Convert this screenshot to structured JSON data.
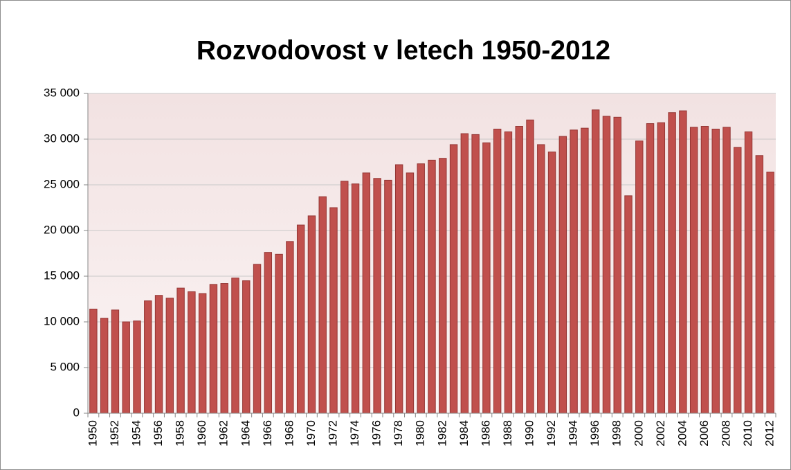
{
  "chart_data": {
    "type": "bar",
    "title": "Rozvodovost v letech 1950-2012",
    "categories": [
      "1950",
      null,
      "1952",
      null,
      "1954",
      null,
      "1956",
      null,
      "1958",
      null,
      "1960",
      null,
      "1962",
      null,
      "1964",
      null,
      "1966",
      null,
      "1968",
      null,
      "1970",
      null,
      "1972",
      null,
      "1974",
      null,
      "1976",
      null,
      "1978",
      null,
      "1980",
      null,
      "1982",
      null,
      "1984",
      null,
      "1986",
      null,
      "1988",
      null,
      "1990",
      null,
      "1992",
      null,
      "1994",
      null,
      "1996",
      null,
      "1998",
      null,
      "2000",
      null,
      "2002",
      null,
      "2004",
      null,
      "2006",
      null,
      "2008",
      null,
      "2010",
      null,
      "2012"
    ],
    "values": [
      11400,
      10400,
      11300,
      10000,
      10100,
      12300,
      12900,
      12600,
      13700,
      13300,
      13100,
      14100,
      14200,
      14800,
      14500,
      16300,
      17600,
      17400,
      18800,
      20600,
      21600,
      23700,
      22500,
      25400,
      25100,
      26300,
      25700,
      25500,
      27200,
      26300,
      27300,
      27700,
      27900,
      29400,
      30600,
      30500,
      29600,
      31100,
      30800,
      31400,
      32100,
      29400,
      28600,
      30300,
      31000,
      31200,
      33200,
      32500,
      32400,
      23800,
      29800,
      31700,
      31800,
      32900,
      33100,
      31300,
      31400,
      31100,
      31300,
      29100,
      30800,
      28200,
      26400
    ],
    "color": "#c0504d",
    "ylim": [
      0,
      35000
    ],
    "yticks": [
      0,
      {
        "value": 5000,
        "label": "5 000"
      },
      {
        "value": 10000,
        "label": "10 000"
      },
      {
        "value": 15000,
        "label": "15 000"
      },
      {
        "value": 20000,
        "label": "20 000"
      },
      {
        "value": 25000,
        "label": "25 000"
      },
      {
        "value": 30000,
        "label": "30 000"
      },
      {
        "value": 35000,
        "label": "35 000"
      }
    ],
    "grid": true
  }
}
